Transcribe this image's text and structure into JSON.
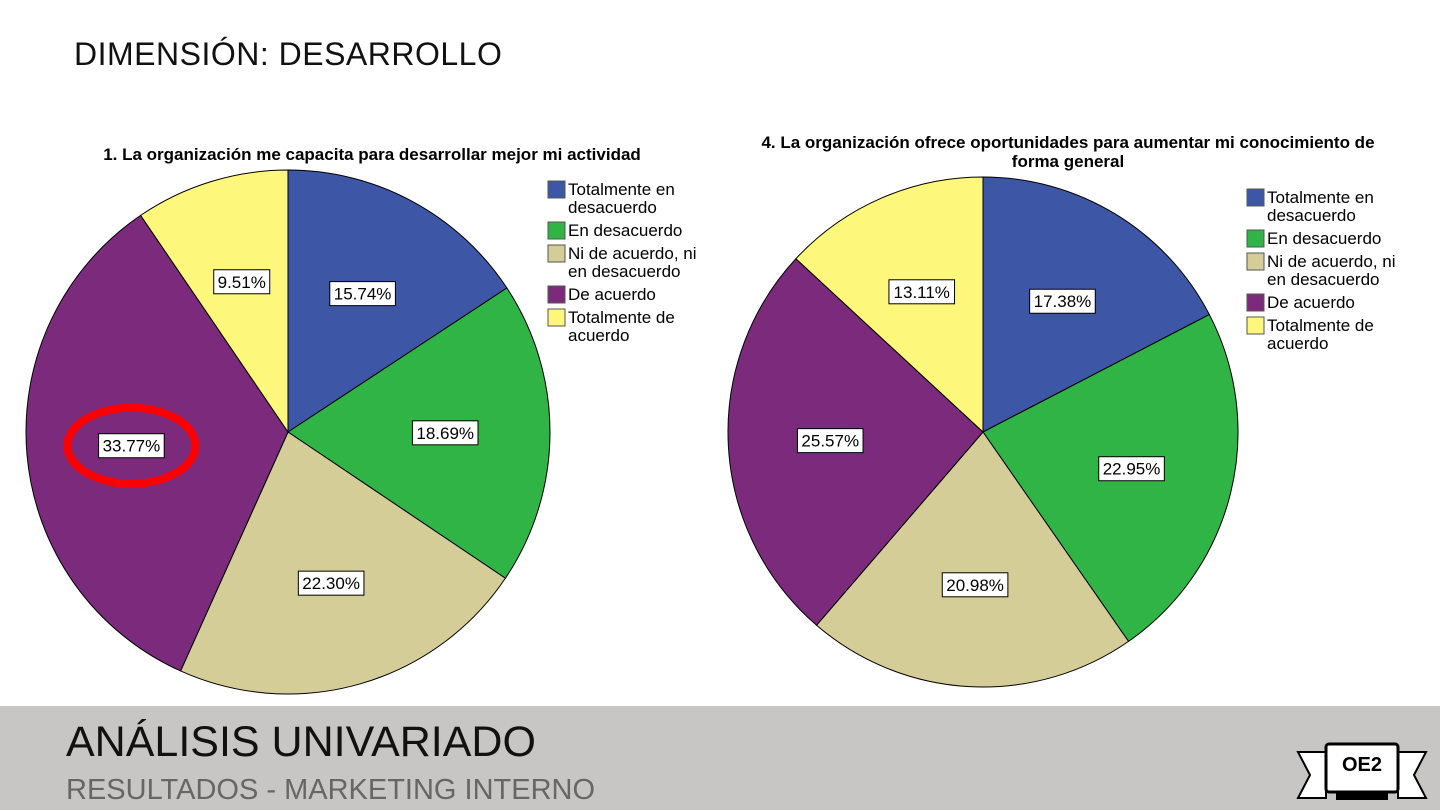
{
  "slide": {
    "title": "DIMENSIÓN: DESARROLLO",
    "footer_title": "ANÁLISIS UNIVARIADO",
    "footer_subtitle": "RESULTADOS - MARKETING INTERNO",
    "badge": "OE2"
  },
  "colors": {
    "highlight": "#ff0000",
    "footer_bg": "#c7c6c5"
  },
  "chart_data": [
    {
      "type": "pie",
      "title_lines": [
        "1. La organización me capacita para desarrollar mejor mi actividad"
      ],
      "categories": [
        "Totalmente en desacuerdo",
        "En desacuerdo",
        "Ni de acuerdo, ni en desacuerdo",
        "De acuerdo",
        "Totalmente de acuerdo"
      ],
      "legend_lines": [
        [
          "Totalmente en",
          "desacuerdo"
        ],
        [
          "En desacuerdo"
        ],
        [
          "Ni de acuerdo, ni",
          "en desacuerdo"
        ],
        [
          "De acuerdo"
        ],
        [
          "Totalmente de",
          "acuerdo"
        ]
      ],
      "values": [
        15.74,
        18.69,
        22.3,
        33.77,
        9.51
      ],
      "labels": [
        "15.74%",
        "18.69%",
        "22.30%",
        "33.77%",
        "9.51%"
      ],
      "colors": [
        "#3d56a6",
        "#2fb445",
        "#d4cd98",
        "#7b2a7c",
        "#fdf77c"
      ],
      "legend_position": "top-right",
      "highlighted_slice": "De acuerdo"
    },
    {
      "type": "pie",
      "title_lines": [
        "4. La organización ofrece oportunidades para aumentar mi conocimiento de",
        "forma general"
      ],
      "categories": [
        "Totalmente en desacuerdo",
        "En desacuerdo",
        "Ni de acuerdo, ni en desacuerdo",
        "De acuerdo",
        "Totalmente de acuerdo"
      ],
      "legend_lines": [
        [
          "Totalmente en",
          "desacuerdo"
        ],
        [
          "En desacuerdo"
        ],
        [
          "Ni de acuerdo, ni",
          "en desacuerdo"
        ],
        [
          "De acuerdo"
        ],
        [
          "Totalmente de",
          "acuerdo"
        ]
      ],
      "values": [
        17.38,
        22.95,
        20.98,
        25.57,
        13.11
      ],
      "labels": [
        "17.38%",
        "22.95%",
        "20.98%",
        "25.57%",
        "13.11%"
      ],
      "colors": [
        "#3d56a6",
        "#2fb445",
        "#d4cd98",
        "#7b2a7c",
        "#fdf77c"
      ],
      "legend_position": "top-right"
    }
  ]
}
